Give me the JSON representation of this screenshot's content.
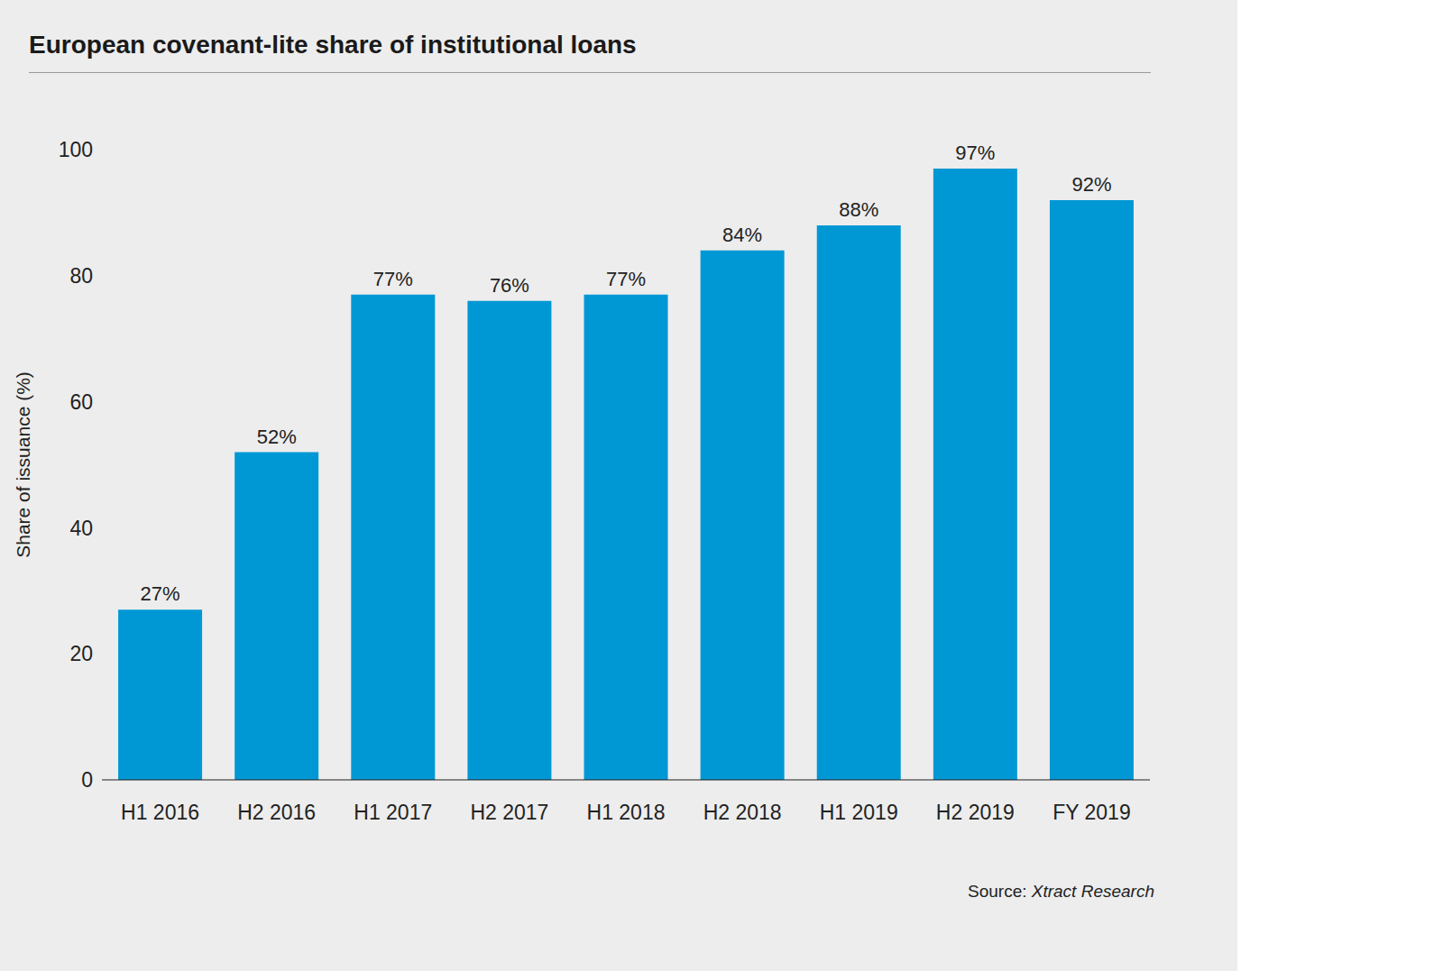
{
  "chart_data": {
    "type": "bar",
    "title": "European covenant-lite share of institutional loans",
    "y_label": "Share of issuance (%)",
    "categories": [
      "H1 2016",
      "H2 2016",
      "H1 2017",
      "H2 2017",
      "H1 2018",
      "H2 2018",
      "H1 2019",
      "H2 2019",
      "FY 2019"
    ],
    "values": [
      27,
      52,
      77,
      76,
      77,
      84,
      88,
      97,
      92
    ],
    "value_labels": [
      "27%",
      "52%",
      "77%",
      "76%",
      "77%",
      "84%",
      "88%",
      "97%",
      "92%"
    ],
    "color": "#0098d4",
    "ylim": [
      0,
      100
    ],
    "yticks": [
      0,
      20,
      40,
      60,
      80,
      100
    ],
    "grid": false,
    "data_labels": true,
    "source": "Source: Xtract Research"
  }
}
